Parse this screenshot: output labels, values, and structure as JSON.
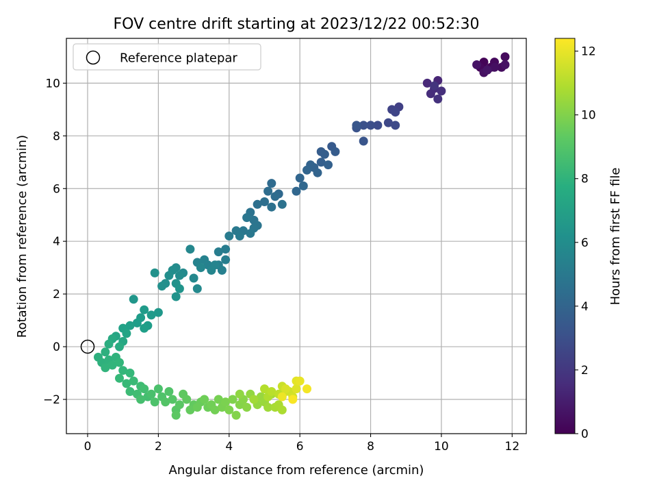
{
  "chart_data": {
    "type": "scatter",
    "title": "FOV centre drift starting at 2023/12/22 00:52:30",
    "xlabel": "Angular distance from reference (arcmin)",
    "ylabel": "Rotation from reference (arcmin)",
    "xlim": [
      -0.6,
      12.4
    ],
    "ylim": [
      -3.3,
      11.7
    ],
    "xticks": [
      0,
      2,
      4,
      6,
      8,
      10,
      12
    ],
    "yticks": [
      -2,
      0,
      2,
      4,
      6,
      8,
      10
    ],
    "xtick_labels": [
      "0",
      "2",
      "4",
      "6",
      "8",
      "10",
      "12"
    ],
    "ytick_labels": [
      "−2",
      "0",
      "2",
      "4",
      "6",
      "8",
      "10"
    ],
    "grid": true,
    "legend": {
      "placement": "top-left",
      "entries": [
        "Reference platepar"
      ]
    },
    "reference_point": {
      "x": 0,
      "y": 0
    },
    "colorbar": {
      "label": "Hours from first FF file",
      "colormap": "viridis",
      "range": [
        0,
        12.4
      ],
      "ticks": [
        0,
        2,
        4,
        6,
        8,
        10,
        12
      ],
      "tick_labels": [
        "0",
        "2",
        "4",
        "6",
        "8",
        "10",
        "12"
      ]
    },
    "series": [
      {
        "columns": [
          "x",
          "y",
          "hours"
        ],
        "points": [
          [
            11.2,
            10.8,
            0.1
          ],
          [
            11.4,
            10.6,
            0.2
          ],
          [
            11.1,
            10.6,
            0.25
          ],
          [
            11.5,
            10.8,
            0.3
          ],
          [
            11.8,
            11.0,
            0.35
          ],
          [
            11.7,
            10.6,
            0.4
          ],
          [
            11.3,
            10.5,
            0.45
          ],
          [
            11.5,
            10.6,
            0.5
          ],
          [
            11.2,
            10.4,
            0.55
          ],
          [
            11.8,
            10.7,
            0.6
          ],
          [
            11.0,
            10.7,
            0.65
          ],
          [
            11.3,
            10.5,
            0.7
          ],
          [
            9.9,
            10.1,
            1.3
          ],
          [
            9.6,
            10.0,
            1.4
          ],
          [
            9.8,
            9.8,
            1.5
          ],
          [
            9.7,
            9.6,
            1.6
          ],
          [
            10.0,
            9.7,
            1.7
          ],
          [
            9.9,
            9.4,
            1.8
          ],
          [
            9.8,
            9.9,
            1.9
          ],
          [
            8.8,
            9.1,
            2.4
          ],
          [
            8.6,
            9.0,
            2.5
          ],
          [
            8.7,
            8.9,
            2.6
          ],
          [
            8.5,
            8.5,
            2.7
          ],
          [
            8.7,
            8.4,
            2.8
          ],
          [
            8.2,
            8.4,
            2.9
          ],
          [
            8.0,
            8.4,
            3.0
          ],
          [
            7.8,
            8.4,
            3.1
          ],
          [
            7.6,
            8.3,
            3.2
          ],
          [
            7.8,
            7.8,
            3.3
          ],
          [
            7.6,
            8.4,
            3.35
          ],
          [
            6.9,
            7.6,
            3.5
          ],
          [
            7.0,
            7.4,
            3.6
          ],
          [
            6.6,
            7.4,
            3.65
          ],
          [
            6.7,
            7.3,
            3.7
          ],
          [
            6.6,
            7.0,
            3.75
          ],
          [
            6.8,
            6.9,
            3.8
          ],
          [
            6.4,
            6.8,
            3.85
          ],
          [
            6.3,
            6.9,
            3.9
          ],
          [
            6.5,
            6.6,
            3.95
          ],
          [
            6.2,
            6.7,
            4.0
          ],
          [
            6.0,
            6.4,
            4.05
          ],
          [
            5.9,
            5.9,
            4.1
          ],
          [
            6.1,
            6.1,
            4.15
          ],
          [
            5.4,
            5.8,
            4.2
          ],
          [
            5.2,
            6.2,
            4.3
          ],
          [
            5.3,
            5.7,
            4.35
          ],
          [
            5.1,
            5.9,
            4.4
          ],
          [
            5.0,
            5.5,
            4.5
          ],
          [
            4.8,
            5.4,
            4.55
          ],
          [
            5.2,
            5.3,
            4.6
          ],
          [
            5.5,
            5.4,
            4.65
          ],
          [
            4.6,
            5.1,
            4.7
          ],
          [
            4.7,
            4.8,
            4.75
          ],
          [
            4.8,
            4.6,
            4.8
          ],
          [
            4.5,
            4.9,
            4.85
          ],
          [
            4.7,
            4.5,
            4.9
          ],
          [
            4.4,
            4.4,
            4.95
          ],
          [
            4.6,
            4.3,
            5.0
          ],
          [
            4.2,
            4.4,
            5.05
          ],
          [
            4.3,
            4.2,
            5.1
          ],
          [
            4.0,
            4.2,
            5.15
          ],
          [
            3.9,
            3.7,
            5.2
          ],
          [
            3.7,
            3.6,
            5.25
          ],
          [
            3.9,
            3.3,
            5.3
          ],
          [
            3.7,
            3.1,
            5.35
          ],
          [
            3.8,
            2.9,
            5.4
          ],
          [
            3.4,
            3.1,
            5.45
          ],
          [
            3.3,
            3.3,
            5.5
          ],
          [
            3.1,
            3.2,
            5.55
          ],
          [
            3.6,
            3.1,
            5.6
          ],
          [
            3.5,
            2.9,
            5.65
          ],
          [
            3.2,
            3.0,
            5.7
          ],
          [
            2.9,
            3.7,
            5.75
          ],
          [
            3.0,
            2.6,
            5.8
          ],
          [
            3.1,
            2.2,
            5.85
          ],
          [
            2.7,
            2.8,
            5.9
          ],
          [
            2.5,
            3.0,
            5.95
          ],
          [
            2.6,
            2.7,
            6.0
          ],
          [
            2.4,
            2.9,
            6.05
          ],
          [
            2.3,
            2.7,
            6.1
          ],
          [
            2.2,
            2.4,
            6.15
          ],
          [
            2.1,
            2.3,
            6.2
          ],
          [
            1.9,
            2.8,
            6.25
          ],
          [
            2.5,
            2.4,
            6.3
          ],
          [
            2.5,
            1.9,
            6.35
          ],
          [
            2.6,
            2.2,
            6.4
          ],
          [
            1.3,
            1.8,
            6.5
          ],
          [
            2.0,
            1.3,
            6.6
          ],
          [
            1.8,
            1.2,
            6.7
          ],
          [
            1.6,
            1.4,
            6.75
          ],
          [
            1.5,
            1.1,
            6.8
          ],
          [
            1.7,
            0.8,
            6.85
          ],
          [
            1.4,
            0.9,
            6.9
          ],
          [
            1.6,
            0.7,
            6.95
          ],
          [
            1.2,
            0.8,
            7.0
          ],
          [
            1.0,
            0.7,
            7.1
          ],
          [
            1.1,
            0.5,
            7.2
          ],
          [
            0.8,
            0.4,
            7.3
          ],
          [
            1.0,
            0.2,
            7.4
          ],
          [
            0.7,
            0.3,
            7.5
          ],
          [
            0.9,
            0.0,
            7.6
          ],
          [
            0.6,
            0.1,
            7.7
          ],
          [
            0.5,
            -0.2,
            7.8
          ],
          [
            0.3,
            -0.4,
            7.85
          ],
          [
            0.4,
            -0.6,
            7.9
          ],
          [
            0.6,
            -0.5,
            7.95
          ],
          [
            0.8,
            -0.4,
            8.0
          ],
          [
            0.5,
            -0.8,
            8.05
          ],
          [
            0.7,
            -0.7,
            8.1
          ],
          [
            0.9,
            -0.6,
            8.15
          ],
          [
            1.0,
            -0.9,
            8.2
          ],
          [
            1.2,
            -1.0,
            8.25
          ],
          [
            0.9,
            -1.2,
            8.3
          ],
          [
            1.1,
            -1.4,
            8.35
          ],
          [
            1.3,
            -1.3,
            8.4
          ],
          [
            1.2,
            -1.7,
            8.45
          ],
          [
            1.5,
            -1.5,
            8.5
          ],
          [
            1.4,
            -1.8,
            8.55
          ],
          [
            1.6,
            -1.6,
            8.6
          ],
          [
            1.7,
            -1.9,
            8.65
          ],
          [
            1.5,
            -2.0,
            8.7
          ],
          [
            1.8,
            -1.8,
            8.75
          ],
          [
            2.0,
            -1.6,
            8.8
          ],
          [
            1.9,
            -2.1,
            8.85
          ],
          [
            2.1,
            -1.9,
            8.9
          ],
          [
            2.3,
            -1.7,
            8.95
          ],
          [
            2.2,
            -2.1,
            9.0
          ],
          [
            2.4,
            -2.0,
            9.05
          ],
          [
            2.5,
            -2.4,
            9.1
          ],
          [
            2.6,
            -2.2,
            9.15
          ],
          [
            2.5,
            -2.6,
            9.2
          ],
          [
            2.7,
            -1.8,
            9.25
          ],
          [
            2.8,
            -2.0,
            9.3
          ],
          [
            3.0,
            -2.2,
            9.35
          ],
          [
            2.9,
            -2.4,
            9.4
          ],
          [
            3.2,
            -2.1,
            9.5
          ],
          [
            3.1,
            -2.3,
            9.55
          ],
          [
            3.4,
            -2.3,
            9.6
          ],
          [
            3.3,
            -2.0,
            9.65
          ],
          [
            3.5,
            -2.2,
            9.7
          ],
          [
            3.6,
            -2.4,
            9.75
          ],
          [
            3.7,
            -2.0,
            9.8
          ],
          [
            3.8,
            -2.3,
            9.85
          ],
          [
            3.9,
            -2.1,
            9.9
          ],
          [
            4.0,
            -2.4,
            9.95
          ],
          [
            4.1,
            -2.0,
            10.0
          ],
          [
            4.2,
            -2.6,
            10.05
          ],
          [
            4.3,
            -2.2,
            10.1
          ],
          [
            4.4,
            -2.0,
            10.15
          ],
          [
            4.5,
            -2.3,
            10.2
          ],
          [
            4.3,
            -1.8,
            10.3
          ],
          [
            4.6,
            -1.8,
            10.35
          ],
          [
            4.8,
            -2.2,
            10.4
          ],
          [
            4.9,
            -1.9,
            10.45
          ],
          [
            5.0,
            -2.1,
            10.5
          ],
          [
            5.1,
            -2.3,
            10.6
          ],
          [
            4.7,
            -2.0,
            10.65
          ],
          [
            5.2,
            -1.8,
            10.7
          ],
          [
            5.3,
            -2.3,
            10.75
          ],
          [
            5.4,
            -2.2,
            10.8
          ],
          [
            5.5,
            -2.4,
            10.85
          ],
          [
            5.1,
            -1.9,
            10.9
          ],
          [
            5.0,
            -1.6,
            11.0
          ],
          [
            5.2,
            -1.7,
            11.1
          ],
          [
            5.4,
            -1.8,
            11.2
          ],
          [
            5.6,
            -1.7,
            11.3
          ],
          [
            5.5,
            -1.5,
            11.4
          ],
          [
            5.7,
            -1.7,
            11.5
          ],
          [
            5.8,
            -1.9,
            11.6
          ],
          [
            5.6,
            -1.6,
            11.7
          ],
          [
            5.9,
            -1.6,
            11.8
          ],
          [
            5.9,
            -1.3,
            11.9
          ],
          [
            6.0,
            -1.3,
            12.0
          ],
          [
            5.5,
            -1.9,
            12.1
          ],
          [
            6.2,
            -1.6,
            12.2
          ],
          [
            5.8,
            -2.0,
            12.3
          ]
        ]
      }
    ]
  }
}
